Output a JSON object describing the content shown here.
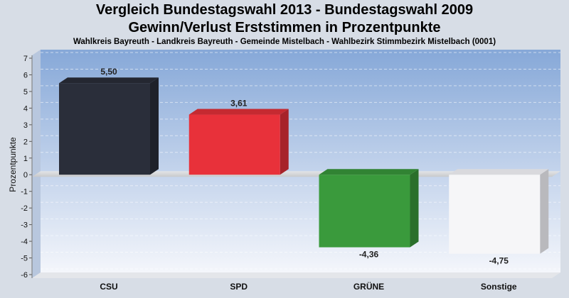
{
  "chart_data": {
    "type": "bar",
    "title_line1": "Vergleich Bundestagswahl 2013 - Bundestagswahl 2009",
    "title_line2": "Gewinn/Verlust Erststimmen in Prozentpunkte",
    "subtitle": "Wahlkreis Bayreuth - Landkreis Bayreuth - Gemeinde Mistelbach - Wahlbezirk Stimmbezirk Mistelbach (0001)",
    "ylabel": "Prozentpunkte",
    "xlabel": "",
    "categories": [
      "CSU",
      "SPD",
      "GRÜNE",
      "Sonstige"
    ],
    "values": [
      5.5,
      3.61,
      -4.36,
      -4.75
    ],
    "value_labels": [
      "5,50",
      "3,61",
      "-4,36",
      "-4,75"
    ],
    "ylim": [
      -6,
      7
    ],
    "yticks": [
      -6,
      -5,
      -4,
      -3,
      -2,
      -1,
      0,
      1,
      2,
      3,
      4,
      5,
      6,
      7
    ],
    "grid": true,
    "legend": "none",
    "colors": {
      "CSU": "#2a2e3a",
      "SPD": "#e8313a",
      "GRÜNE": "#3a9a3c",
      "Sonstige": "#f6f6f8",
      "background_top": "#8eaedb",
      "background_bottom": "#f2f5fb",
      "page": "#d7dde6"
    }
  }
}
